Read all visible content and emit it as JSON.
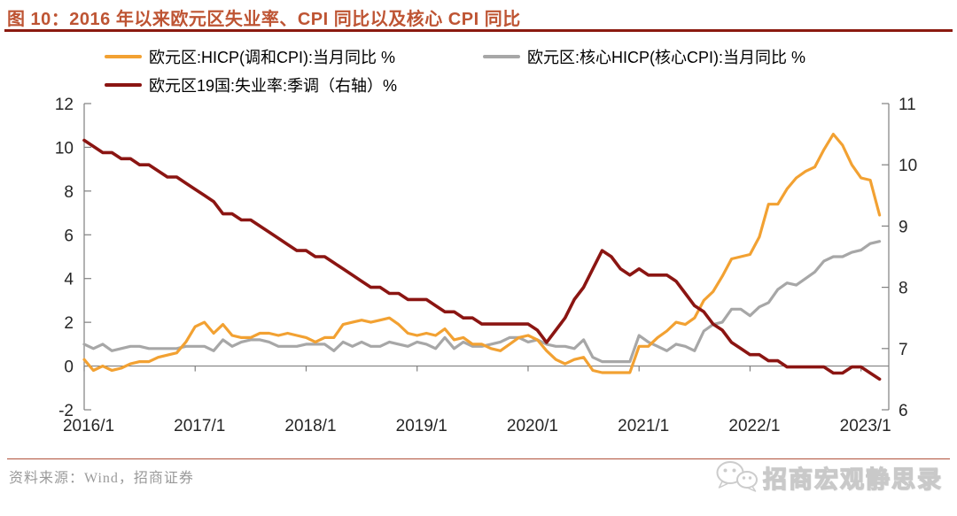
{
  "header": {
    "title": "图 10：2016 年以来欧元区失业率、CPI 同比以及核心 CPI 同比"
  },
  "footer": {
    "source": "资料来源：Wind，招商证券",
    "watermark": "招商宏观静思录"
  },
  "colors": {
    "title_red": "#BE5433",
    "title_rule": "#8B1A10",
    "footer_rule": "#B0513B",
    "axis": "#808080",
    "hicp_orange": "#F2A132",
    "core_gray": "#A7A7A7",
    "unemployment_dark_red": "#8B1512"
  },
  "chart_data": {
    "type": "line",
    "title": "2016 年以来欧元区失业率、CPI 同比以及核心 CPI 同比",
    "x_start": "2016/1",
    "x_end": "2023/3",
    "x_frequency": "monthly",
    "x_tick_labels": [
      "2016/1",
      "2017/1",
      "2018/1",
      "2019/1",
      "2020/1",
      "2021/1",
      "2022/1",
      "2023/1"
    ],
    "left_axis": {
      "min": -2,
      "max": 12,
      "ticks": [
        -2,
        0,
        2,
        4,
        6,
        8,
        10,
        12
      ]
    },
    "right_axis": {
      "min": 6,
      "max": 11,
      "ticks": [
        6,
        7,
        8,
        9,
        10,
        11
      ]
    },
    "grid": false,
    "legend_position": "top",
    "x_axis_baseline_left_value": 0,
    "series": [
      {
        "key": "hicp",
        "name": "欧元区:HICP(调和CPI):当月同比 %",
        "axis": "left",
        "color": "#F2A132",
        "width": 3.2,
        "values": [
          0.3,
          -0.2,
          0.0,
          -0.2,
          -0.1,
          0.1,
          0.2,
          0.2,
          0.4,
          0.5,
          0.6,
          1.1,
          1.8,
          2.0,
          1.5,
          1.9,
          1.4,
          1.3,
          1.3,
          1.5,
          1.5,
          1.4,
          1.5,
          1.4,
          1.3,
          1.1,
          1.3,
          1.3,
          1.9,
          2.0,
          2.1,
          2.0,
          2.1,
          2.2,
          1.9,
          1.5,
          1.4,
          1.5,
          1.4,
          1.7,
          1.2,
          1.3,
          1.0,
          1.0,
          0.8,
          0.7,
          1.0,
          1.3,
          1.4,
          1.2,
          0.7,
          0.3,
          0.1,
          0.3,
          0.4,
          -0.2,
          -0.3,
          -0.3,
          -0.3,
          -0.3,
          0.9,
          0.9,
          1.3,
          1.6,
          2.0,
          1.9,
          2.2,
          3.0,
          3.4,
          4.1,
          4.9,
          5.0,
          5.1,
          5.9,
          7.4,
          7.4,
          8.1,
          8.6,
          8.9,
          9.1,
          9.9,
          10.6,
          10.1,
          9.2,
          8.6,
          8.5,
          6.9
        ]
      },
      {
        "key": "core-hicp",
        "name": "欧元区:核心HICP(核心CPI):当月同比 %",
        "axis": "left",
        "color": "#A7A7A7",
        "width": 3.2,
        "values": [
          1.0,
          0.8,
          1.0,
          0.7,
          0.8,
          0.9,
          0.9,
          0.8,
          0.8,
          0.8,
          0.8,
          0.9,
          0.9,
          0.9,
          0.7,
          1.2,
          0.9,
          1.1,
          1.2,
          1.2,
          1.1,
          0.9,
          0.9,
          0.9,
          1.0,
          1.0,
          1.0,
          0.7,
          1.1,
          0.9,
          1.1,
          0.9,
          0.9,
          1.1,
          1.0,
          0.9,
          1.1,
          1.0,
          0.8,
          1.3,
          0.8,
          1.1,
          0.9,
          0.9,
          1.0,
          1.1,
          1.3,
          1.3,
          1.1,
          1.2,
          1.0,
          0.9,
          0.9,
          0.8,
          1.2,
          0.4,
          0.2,
          0.2,
          0.2,
          0.2,
          1.4,
          1.1,
          0.9,
          0.7,
          1.0,
          0.9,
          0.7,
          1.6,
          1.9,
          2.0,
          2.6,
          2.6,
          2.3,
          2.7,
          2.9,
          3.5,
          3.8,
          3.7,
          4.0,
          4.3,
          4.8,
          5.0,
          5.0,
          5.2,
          5.3,
          5.6,
          5.7
        ]
      },
      {
        "key": "unemployment",
        "name": "欧元区19国:失业率:季调（右轴）%",
        "axis": "right",
        "color": "#8B1512",
        "width": 3.6,
        "values": [
          10.4,
          10.3,
          10.2,
          10.2,
          10.1,
          10.1,
          10.0,
          10.0,
          9.9,
          9.8,
          9.8,
          9.7,
          9.6,
          9.5,
          9.4,
          9.2,
          9.2,
          9.1,
          9.1,
          9.0,
          8.9,
          8.8,
          8.7,
          8.6,
          8.6,
          8.5,
          8.5,
          8.4,
          8.3,
          8.2,
          8.1,
          8.0,
          8.0,
          7.9,
          7.9,
          7.8,
          7.8,
          7.8,
          7.7,
          7.6,
          7.6,
          7.5,
          7.5,
          7.4,
          7.4,
          7.4,
          7.4,
          7.4,
          7.4,
          7.3,
          7.1,
          7.3,
          7.5,
          7.8,
          8.0,
          8.3,
          8.6,
          8.5,
          8.3,
          8.2,
          8.3,
          8.2,
          8.2,
          8.2,
          8.1,
          7.9,
          7.7,
          7.6,
          7.4,
          7.3,
          7.1,
          7.0,
          6.9,
          6.9,
          6.8,
          6.8,
          6.7,
          6.7,
          6.7,
          6.7,
          6.7,
          6.6,
          6.6,
          6.7,
          6.7,
          6.6,
          6.5
        ]
      }
    ]
  }
}
